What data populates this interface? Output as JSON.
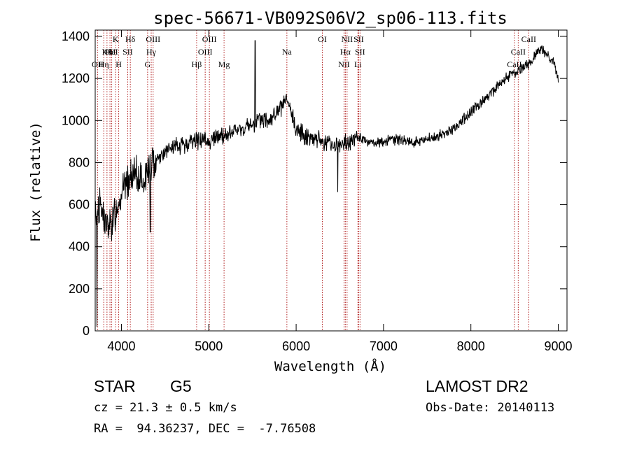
{
  "chart_data": {
    "type": "line",
    "title": "spec-56671-VB092S06V2_sp06-113.fits",
    "xlabel": "Wavelength (Å)",
    "ylabel": "Flux (relative)",
    "xlim": [
      3700,
      9100
    ],
    "ylim": [
      0,
      1430
    ],
    "xticks": [
      4000,
      5000,
      6000,
      7000,
      8000,
      9000
    ],
    "yticks": [
      0,
      200,
      400,
      600,
      800,
      1000,
      1200,
      1400
    ],
    "grid": false,
    "line_color": "#000000",
    "marker_color": "#b22222",
    "continuum": {
      "x": [
        3700,
        3750,
        3800,
        3850,
        3900,
        3950,
        4000,
        4050,
        4100,
        4150,
        4200,
        4250,
        4300,
        4350,
        4400,
        4500,
        4600,
        4700,
        4800,
        4900,
        5000,
        5100,
        5200,
        5300,
        5400,
        5500,
        5600,
        5700,
        5800,
        5850,
        5900,
        5950,
        6000,
        6100,
        6200,
        6300,
        6400,
        6500,
        6600,
        6700,
        6800,
        6900,
        7000,
        7100,
        7200,
        7300,
        7400,
        7500,
        7600,
        7700,
        7800,
        7900,
        8000,
        8100,
        8200,
        8300,
        8400,
        8500,
        8600,
        8700,
        8750,
        8800,
        8900,
        8950,
        9000
      ],
      "y": [
        560,
        600,
        540,
        480,
        520,
        600,
        660,
        700,
        720,
        740,
        730,
        700,
        760,
        790,
        820,
        850,
        870,
        880,
        900,
        910,
        900,
        920,
        930,
        950,
        960,
        980,
        1000,
        1010,
        1040,
        1080,
        1090,
        1020,
        960,
        930,
        920,
        900,
        890,
        880,
        900,
        920,
        900,
        890,
        900,
        910,
        910,
        900,
        900,
        910,
        920,
        940,
        960,
        1000,
        1040,
        1080,
        1120,
        1160,
        1200,
        1230,
        1250,
        1280,
        1330,
        1340,
        1300,
        1270,
        1200
      ]
    },
    "spikes": [
      {
        "x": 5530,
        "y": 1380
      },
      {
        "x": 6475,
        "y": 660
      },
      {
        "x": 4330,
        "y": 470
      },
      {
        "x": 3720,
        "y": 20
      }
    ],
    "lines": [
      {
        "x": 3727,
        "row": 2,
        "label": "OII"
      },
      {
        "x": 3798,
        "row": 2,
        "label": "Hη"
      },
      {
        "x": 3835,
        "row": 1,
        "label": "Hθ"
      },
      {
        "x": 3869,
        "row": 1,
        "label": "OII"
      },
      {
        "x": 3889,
        "row": 1,
        "label": "HeI"
      },
      {
        "x": 3934,
        "row": 0,
        "label": "K"
      },
      {
        "x": 3969,
        "row": 2,
        "label": "H"
      },
      {
        "x": 4072,
        "row": 1,
        "label": "SII"
      },
      {
        "x": 4102,
        "row": 0,
        "label": "Hδ"
      },
      {
        "x": 4300,
        "row": 2,
        "label": "G"
      },
      {
        "x": 4341,
        "row": 1,
        "label": "Hγ"
      },
      {
        "x": 4363,
        "row": 0,
        "label": "OIII"
      },
      {
        "x": 4861,
        "row": 2,
        "label": "Hβ"
      },
      {
        "x": 4959,
        "row": 1,
        "label": "OIII"
      },
      {
        "x": 5007,
        "row": 0,
        "label": "OIII"
      },
      {
        "x": 5175,
        "row": 2,
        "label": "Mg"
      },
      {
        "x": 5894,
        "row": 1,
        "label": "Na"
      },
      {
        "x": 6300,
        "row": 0,
        "label": "OI"
      },
      {
        "x": 6548,
        "row": 2,
        "label": "NII"
      },
      {
        "x": 6563,
        "row": 1,
        "label": "Hα"
      },
      {
        "x": 6583,
        "row": 0,
        "label": "NII"
      },
      {
        "x": 6707,
        "row": 2,
        "label": "Li"
      },
      {
        "x": 6716,
        "row": 0,
        "label": "SII"
      },
      {
        "x": 6731,
        "row": 1,
        "label": "SII"
      },
      {
        "x": 8498,
        "row": 2,
        "label": "CaII"
      },
      {
        "x": 8542,
        "row": 1,
        "label": "CaII"
      },
      {
        "x": 8662,
        "row": 0,
        "label": "CaII"
      }
    ]
  },
  "footer": {
    "object_class": "STAR",
    "subclass": "G5",
    "survey": "LAMOST DR2",
    "velocity": "cz = 21.3 ± 0.5 km/s",
    "obs_date": "Obs-Date: 20140113",
    "coordinates": "RA =  94.36237, DEC =  -7.76508"
  }
}
